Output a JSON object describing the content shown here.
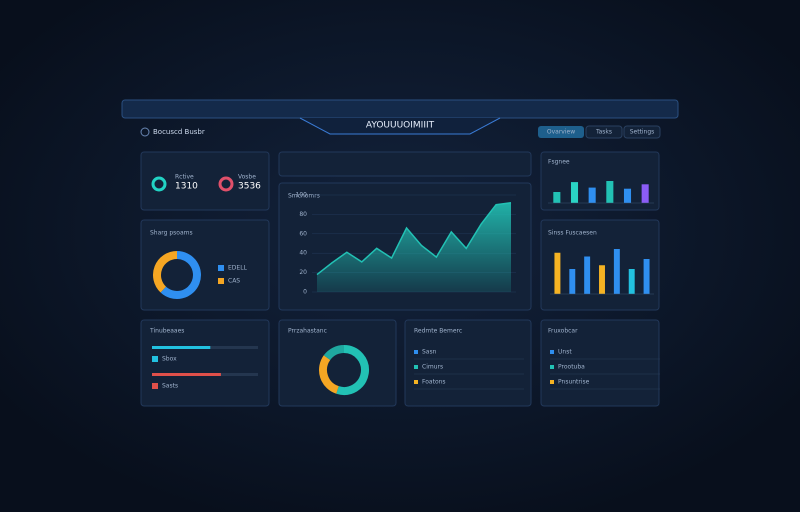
{
  "header": {
    "title": "AYOUUUOIMIIIT",
    "subtitle": "Bocuscd Busbr",
    "tabs": [
      "Ovarview",
      "Tasks",
      "Settings"
    ]
  },
  "kpis": [
    {
      "label": "Rctive",
      "value": "1310"
    },
    {
      "label": "Vosbe",
      "value": "3536"
    }
  ],
  "area_chart": {
    "type": "line",
    "title": "Smcnomrs",
    "values": [
      18,
      30,
      41,
      31,
      45,
      35,
      66,
      48,
      36,
      62,
      45,
      70,
      90,
      92
    ],
    "ylim": [
      0,
      100
    ],
    "yticks": [
      0,
      20,
      40,
      60,
      80,
      100
    ],
    "color": "#22c1b4"
  },
  "bar_chart_1": {
    "type": "bar",
    "title": "Fsgnee",
    "values": [
      10,
      19,
      14,
      20,
      13,
      17
    ],
    "colors": [
      "#22c1b4",
      "#2ad4c4",
      "#2f8ff0",
      "#22c1b4",
      "#2f8ff0",
      "#8b5cf6"
    ],
    "ylim": [
      0,
      30
    ]
  },
  "bar_chart_2": {
    "type": "bar",
    "title": "Sinss Fuscaesen",
    "values": [
      33,
      20,
      30,
      23,
      36,
      20,
      28
    ],
    "colors": [
      "#f5b323",
      "#2f8ff0",
      "#2f8ff0",
      "#f5b323",
      "#2f8ff0",
      "#22c1e0",
      "#2f8ff0"
    ],
    "ylim": [
      0,
      40
    ]
  },
  "donut_1": {
    "type": "pie",
    "title": "Sharg psoams",
    "values": [
      62,
      38
    ],
    "colors": [
      "#2f8ff0",
      "#f5a623"
    ],
    "legend": [
      "EDELL",
      "CAS"
    ]
  },
  "donut_2": {
    "type": "pie",
    "title": "Prrzahastanc",
    "values": [
      55,
      30,
      15
    ],
    "colors": [
      "#22c1b4",
      "#f5a623",
      "#1fa8a0"
    ]
  },
  "progress": {
    "title": "Tinubeaaes",
    "items": [
      {
        "label": "Sbox",
        "value": 55,
        "color": "#22c1e0"
      },
      {
        "label": "Sasts",
        "value": 65,
        "color": "#e0504a"
      }
    ]
  },
  "list_1": {
    "title": "Redmte Bemerc",
    "rows": [
      "Sasn",
      "Cimurs",
      "Foatons"
    ]
  },
  "list_2": {
    "title": "Fruxobcar",
    "rows": [
      "Unst",
      "Prootuba",
      "Pnsuntrise"
    ]
  }
}
